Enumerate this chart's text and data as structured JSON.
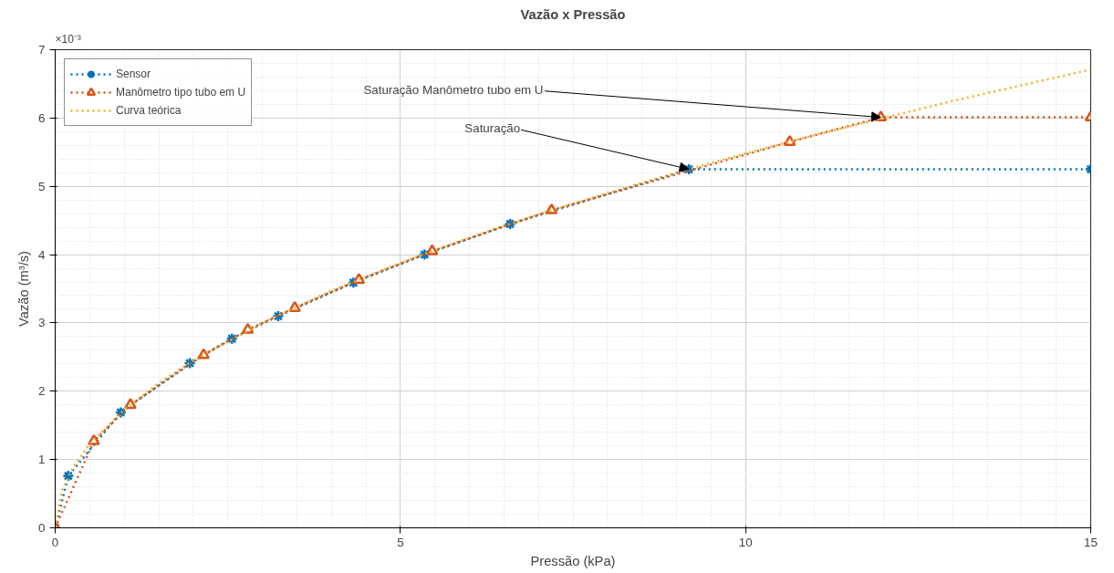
{
  "chart_data": {
    "type": "line",
    "title": "Vazão x Pressão",
    "xlabel": "Pressão (kPa)",
    "ylabel": "Vazão (m³/s)",
    "xlim": [
      0,
      15
    ],
    "ylim": [
      0,
      7
    ],
    "xticks": [
      0,
      5,
      10,
      15
    ],
    "yticks": [
      0,
      1,
      2,
      3,
      4,
      5,
      6,
      7
    ],
    "grid": true,
    "legend": "top left",
    "line_style": "dotted",
    "series": [
      {
        "name": "Sensor",
        "color": "#0072bd",
        "marker": "cross",
        "x": [
          0,
          0.19,
          0.95,
          1.95,
          2.56,
          3.23,
          4.32,
          5.35,
          6.59,
          9.18,
          15
        ],
        "values": [
          0,
          0.76,
          1.69,
          2.41,
          2.77,
          3.1,
          3.59,
          4.0,
          4.45,
          5.25,
          5.25
        ]
      },
      {
        "name": "Manômetro tipo tubo em U",
        "color": "#d95319",
        "marker": "triangle",
        "x": [
          0,
          0.56,
          1.09,
          2.15,
          2.79,
          3.47,
          4.4,
          5.46,
          7.19,
          10.64,
          11.96,
          15
        ],
        "values": [
          0,
          1.27,
          1.8,
          2.53,
          2.9,
          3.22,
          3.63,
          4.05,
          4.65,
          5.65,
          6.01,
          6.01
        ]
      },
      {
        "name": "Curva teórica",
        "color": "#edb120",
        "marker": "none",
        "x": [
          0,
          0.1,
          0.25,
          0.5,
          1,
          1.5,
          2,
          3,
          4,
          5,
          6,
          7,
          8,
          9,
          10,
          11,
          12,
          13,
          14,
          15
        ],
        "values": [
          0,
          0.55,
          0.87,
          1.23,
          1.73,
          2.12,
          2.45,
          3.0,
          3.47,
          3.88,
          4.25,
          4.59,
          4.9,
          5.2,
          5.48,
          5.75,
          6.0,
          6.25,
          6.48,
          6.71
        ]
      }
    ],
    "annotations": [
      "×10⁻³",
      {
        "text": "Saturação Manômetro tubo em U",
        "x": 11.96,
        "y": 6.01
      },
      {
        "text": "Saturação",
        "x": 9.18,
        "y": 5.25
      }
    ]
  }
}
